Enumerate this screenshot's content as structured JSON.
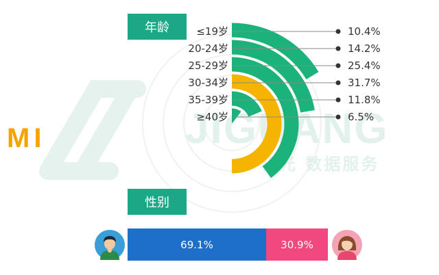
{
  "logo": {
    "text": "MI"
  },
  "watermark": {
    "word": "JIGUANG",
    "sub": "极光 数据服务"
  },
  "age_header": "年龄",
  "gender_header": "性别",
  "colors": {
    "green": "#1bb27b",
    "orange": "#f5b400",
    "header": "#1aa887",
    "male": "#1e6fc9",
    "female": "#f1487f"
  },
  "chart_data": [
    {
      "type": "radial-bar",
      "title": "年龄",
      "categories": [
        "≤19岁",
        "20-24岁",
        "25-29岁",
        "30-34岁",
        "35-39岁",
        "≥40岁"
      ],
      "values": [
        10.4,
        14.2,
        25.4,
        31.7,
        11.8,
        6.5
      ],
      "value_labels": [
        "10.4%",
        "14.2%",
        "25.4%",
        "31.7%",
        "11.8%",
        "6.5%"
      ],
      "highlight_category": "30-34岁",
      "max_value": 31.7
    },
    {
      "type": "bar",
      "orientation": "horizontal-stacked",
      "title": "性别",
      "categories": [
        "男",
        "女"
      ],
      "values": [
        69.1,
        30.9
      ],
      "value_labels": [
        "69.1%",
        "30.9%"
      ]
    }
  ]
}
